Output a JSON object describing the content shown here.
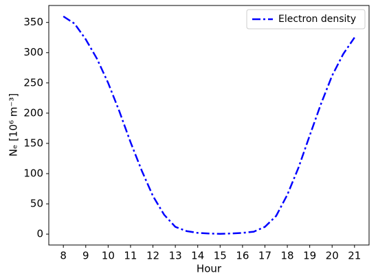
{
  "chart_data": {
    "type": "line",
    "xlabel": "Hour",
    "ylabel": "Nₑ [10⁶ m⁻³]",
    "x": [
      8,
      8.5,
      9,
      9.5,
      10,
      10.5,
      11,
      11.5,
      12,
      12.5,
      13,
      13.5,
      14,
      14.5,
      15,
      15.5,
      16,
      16.5,
      17,
      17.5,
      18,
      18.5,
      19,
      19.5,
      20,
      20.5,
      21
    ],
    "series": [
      {
        "name": "Electron density",
        "color": "#0000ff",
        "linestyle": "dashdot",
        "values": [
          360,
          348,
          322,
          290,
          250,
          203,
          152,
          105,
          63,
          32,
          12,
          5,
          2,
          1,
          0.5,
          1,
          2,
          4,
          12,
          30,
          65,
          110,
          163,
          215,
          262,
          298,
          325
        ]
      }
    ],
    "xlim": [
      7.35,
      21.65
    ],
    "ylim": [
      -18,
      378
    ],
    "xticks": [
      8,
      9,
      10,
      11,
      12,
      13,
      14,
      15,
      16,
      17,
      18,
      19,
      20,
      21
    ],
    "yticks": [
      0,
      50,
      100,
      150,
      200,
      250,
      300,
      350
    ],
    "grid": false,
    "legend": "upper right"
  }
}
